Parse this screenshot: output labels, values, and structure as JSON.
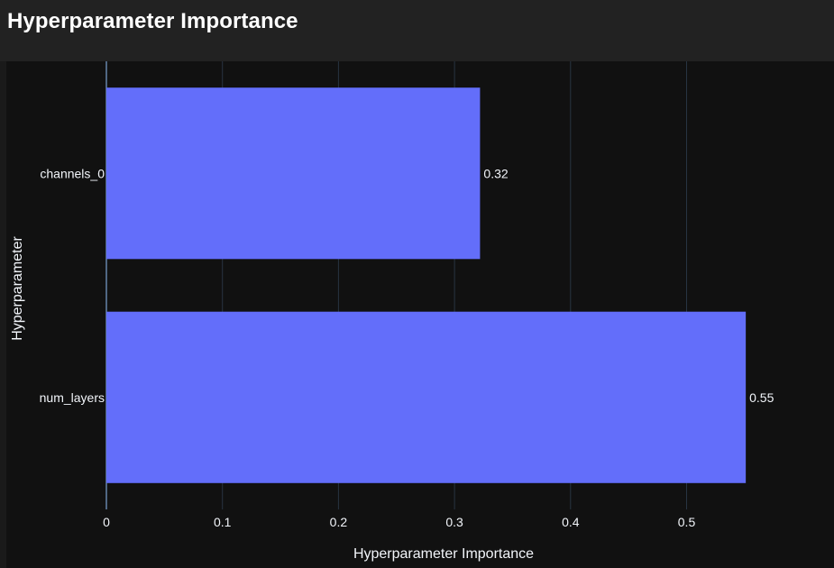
{
  "header": {
    "title": "Hyperparameter Importance"
  },
  "colors": {
    "background": "#111111",
    "header_background": "#222222",
    "bar": "#636efa",
    "grid": "#283442",
    "text": "#f2f5fa"
  },
  "chart_data": {
    "type": "bar",
    "orientation": "horizontal",
    "categories": [
      "channels_0",
      "num_layers"
    ],
    "values": [
      0.322,
      0.551
    ],
    "data_labels": [
      "0.32",
      "0.55"
    ],
    "xlabel": "Hyperparameter Importance",
    "ylabel": "Hyperparameter",
    "xlim": [
      0,
      0.6
    ],
    "xticks": [
      0,
      0.1,
      0.2,
      0.3,
      0.4,
      0.5
    ],
    "xtick_labels": [
      "0",
      "0.1",
      "0.2",
      "0.3",
      "0.4",
      "0.5"
    ],
    "grid": true,
    "legend": "none"
  }
}
